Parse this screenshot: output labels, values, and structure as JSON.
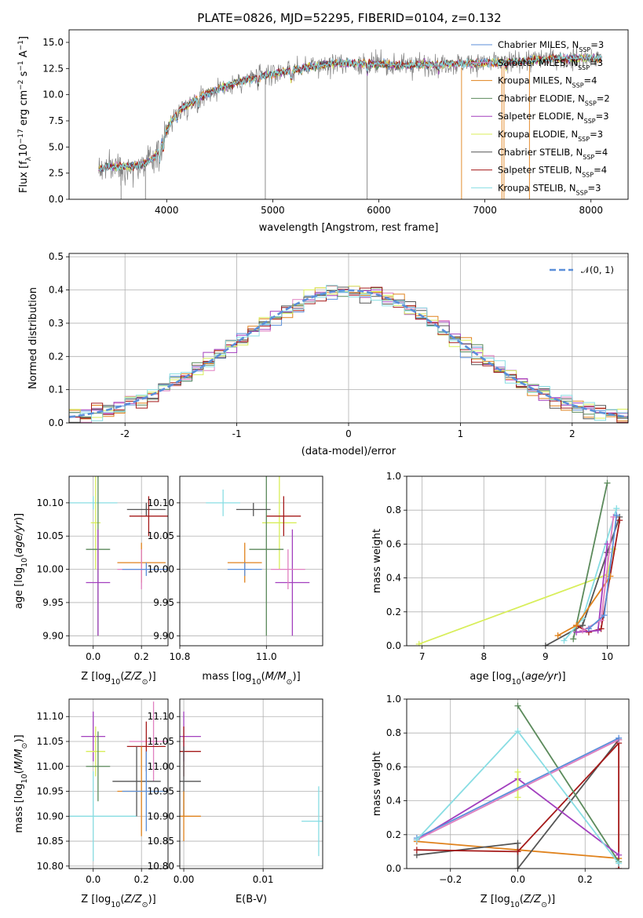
{
  "title": "PLATE=0826, MJD=52295, FIBERID=0104, z=0.132",
  "colors": {
    "chabrier_miles": "#5b8fd9",
    "salpeter_miles": "#e07fc0",
    "kroupa_miles": "#e0821c",
    "chabrier_elodie": "#5b8a5b",
    "salpeter_elodie": "#a23fbe",
    "kroupa_elodie": "#d8ee5a",
    "chabrier_stelib": "#555555",
    "salpeter_stelib": "#a51a1a",
    "kroupa_stelib": "#88dde3",
    "data": "#808080",
    "normal": "#5b8fd9"
  },
  "chart_data": [
    {
      "type": "line",
      "name": "spectrum",
      "xlabel": "wavelength [Angstrom, rest frame]",
      "ylabel": "Flux [f_λ10^-17 erg cm^-2 s^-1 A^-1]",
      "xlim": [
        3080,
        8350
      ],
      "ylim": [
        0,
        16.2
      ],
      "xticks": [
        4000,
        5000,
        6000,
        7000,
        8000
      ],
      "yticks": [
        0.0,
        2.5,
        5.0,
        7.5,
        10.0,
        12.5,
        15.0
      ],
      "continuum": {
        "x": [
          3360,
          3500,
          3600,
          3700,
          3800,
          3900,
          4000,
          4100,
          4200,
          4300,
          4400,
          4500,
          4700,
          5000,
          5300,
          5600,
          5900,
          6200,
          6500,
          6800,
          7000,
          7300,
          7600,
          8000,
          8100
        ],
        "y": [
          2.9,
          3.2,
          3.1,
          3.2,
          3.4,
          4.2,
          6.6,
          8.4,
          9.0,
          9.7,
          10.2,
          10.6,
          11.3,
          12.0,
          12.6,
          13.0,
          13.0,
          12.8,
          12.9,
          13.0,
          13.0,
          13.2,
          13.4,
          13.5,
          13.4
        ]
      },
      "series": [
        {
          "name": "Chabrier MILES, N_SSP=3",
          "color_key": "chabrier_miles"
        },
        {
          "name": "Salpeter MILES, N_SSP=3",
          "color_key": "salpeter_miles"
        },
        {
          "name": "Kroupa MILES, N_SSP=4",
          "color_key": "kroupa_miles"
        },
        {
          "name": "Chabrier ELODIE, N_SSP=2",
          "color_key": "chabrier_elodie"
        },
        {
          "name": "Salpeter ELODIE, N_SSP=3",
          "color_key": "salpeter_elodie"
        },
        {
          "name": "Kroupa ELODIE, N_SSP=3",
          "color_key": "kroupa_elodie"
        },
        {
          "name": "Chabrier STELIB, N_SSP=4",
          "color_key": "chabrier_stelib"
        },
        {
          "name": "Salpeter STELIB, N_SSP=4",
          "color_key": "salpeter_stelib"
        },
        {
          "name": "Kroupa STELIB, N_SSP=3",
          "color_key": "kroupa_stelib"
        }
      ],
      "legend": "right",
      "grid": false
    },
    {
      "type": "line",
      "name": "residual histogram",
      "xlabel": "(data-model)/error",
      "ylabel": "Normed distribution",
      "xlim": [
        -2.5,
        2.5
      ],
      "ylim": [
        0,
        0.51
      ],
      "xticks": [
        -2,
        -1,
        0,
        1,
        2
      ],
      "yticks": [
        0.0,
        0.1,
        0.2,
        0.3,
        0.4,
        0.5
      ],
      "bin_width": 0.1,
      "normal_curve": {
        "name": "N(0,1)",
        "mu": 0,
        "sigma": 1
      },
      "legend": "top-right",
      "grid": true
    },
    {
      "type": "scatter",
      "name": "age vs Z",
      "xlabel": "Z [log10(Z/Z_sun)]",
      "ylabel": "age  [log10(age/yr)]",
      "xlim": [
        -0.1,
        0.31
      ],
      "ylim": [
        9.885,
        10.14
      ],
      "xticks": [
        0.0,
        0.2
      ],
      "yticks": [
        9.9,
        9.95,
        10.0,
        10.05,
        10.1
      ],
      "points": [
        {
          "x": 0.0,
          "y": 10.1,
          "xerr": 0.1,
          "yerr": 0.01,
          "color_key": "kroupa_stelib"
        },
        {
          "x": 0.01,
          "y": 10.07,
          "xerr": 0.02,
          "yerr": 0.07,
          "color_key": "kroupa_elodie"
        },
        {
          "x": 0.02,
          "y": 10.03,
          "xerr": 0.05,
          "yerr": 0.13,
          "color_key": "chabrier_elodie"
        },
        {
          "x": 0.02,
          "y": 9.98,
          "xerr": 0.05,
          "yerr": 0.08,
          "color_key": "salpeter_elodie"
        },
        {
          "x": 0.22,
          "y": 10.09,
          "xerr": 0.08,
          "yerr": 0.01,
          "color_key": "chabrier_stelib"
        },
        {
          "x": 0.23,
          "y": 10.08,
          "xerr": 0.08,
          "yerr": 0.03,
          "color_key": "salpeter_stelib"
        },
        {
          "x": 0.2,
          "y": 10.01,
          "xerr": 0.1,
          "yerr": 0.03,
          "color_key": "kroupa_miles"
        },
        {
          "x": 0.2,
          "y": 10.0,
          "xerr": 0.1,
          "yerr": 0.03,
          "color_key": "salpeter_miles"
        },
        {
          "x": 0.22,
          "y": 10.0,
          "xerr": 0.1,
          "yerr": 0.01,
          "color_key": "chabrier_miles"
        }
      ],
      "grid": true
    },
    {
      "type": "scatter",
      "name": "age vs mass",
      "xlabel": "mass [log10(M/M_sun)]",
      "ylabel": "",
      "xlim": [
        10.8,
        11.13
      ],
      "ylim": [
        9.885,
        10.14
      ],
      "xticks": [
        10.8,
        11.0
      ],
      "yticks": [
        9.9,
        9.95,
        10.0,
        10.05,
        10.1
      ],
      "points": [
        {
          "x": 10.9,
          "y": 10.1,
          "yerr": 0.02,
          "color_key": "kroupa_stelib"
        },
        {
          "x": 11.03,
          "y": 10.07,
          "yerr": 0.07,
          "color_key": "kroupa_elodie"
        },
        {
          "x": 11.0,
          "y": 10.03,
          "yerr": 0.13,
          "color_key": "chabrier_elodie"
        },
        {
          "x": 11.06,
          "y": 9.98,
          "yerr": 0.08,
          "color_key": "salpeter_elodie"
        },
        {
          "x": 10.97,
          "y": 10.09,
          "yerr": 0.01,
          "color_key": "chabrier_stelib"
        },
        {
          "x": 11.04,
          "y": 10.08,
          "yerr": 0.03,
          "color_key": "salpeter_stelib"
        },
        {
          "x": 10.95,
          "y": 10.01,
          "yerr": 0.03,
          "color_key": "kroupa_miles"
        },
        {
          "x": 11.05,
          "y": 10.0,
          "yerr": 0.03,
          "color_key": "salpeter_miles"
        },
        {
          "x": 10.95,
          "y": 10.0,
          "yerr": 0.01,
          "color_key": "chabrier_miles"
        }
      ],
      "grid": true
    },
    {
      "type": "line",
      "name": "mass weight vs age",
      "xlabel": "age  [log10(age/yr)]",
      "ylabel": "mass weight",
      "xlim": [
        6.75,
        10.35
      ],
      "ylim": [
        0,
        1.0
      ],
      "xticks": [
        7,
        8,
        9,
        10
      ],
      "yticks": [
        0.0,
        0.2,
        0.4,
        0.6,
        0.8,
        1.0
      ],
      "series": [
        {
          "color_key": "kroupa_elodie",
          "x": [
            6.95,
            10.0,
            10.1
          ],
          "y": [
            0.01,
            0.42,
            0.57
          ]
        },
        {
          "color_key": "chabrier_stelib",
          "x": [
            9.0,
            9.6,
            10.0,
            10.2
          ],
          "y": [
            0.0,
            0.12,
            0.55,
            0.76
          ]
        },
        {
          "color_key": "salpeter_stelib",
          "x": [
            9.5,
            9.7,
            9.9,
            10.2
          ],
          "y": [
            0.12,
            0.08,
            0.1,
            0.74
          ]
        },
        {
          "color_key": "chabrier_elodie",
          "x": [
            9.45,
            10.0
          ],
          "y": [
            0.04,
            0.96
          ]
        },
        {
          "color_key": "kroupa_stelib",
          "x": [
            9.3,
            9.6,
            10.15
          ],
          "y": [
            0.03,
            0.16,
            0.81
          ]
        },
        {
          "color_key": "kroupa_miles",
          "x": [
            9.2,
            9.5,
            10.05
          ],
          "y": [
            0.06,
            0.12,
            0.41
          ]
        },
        {
          "color_key": "salpeter_elodie",
          "x": [
            9.5,
            9.85,
            10.0
          ],
          "y": [
            0.08,
            0.09,
            0.6
          ]
        },
        {
          "color_key": "salpeter_miles",
          "x": [
            9.6,
            9.9,
            10.1
          ],
          "y": [
            0.09,
            0.15,
            0.76
          ]
        },
        {
          "color_key": "chabrier_miles",
          "x": [
            9.7,
            9.95,
            10.15
          ],
          "y": [
            0.1,
            0.18,
            0.77
          ]
        }
      ],
      "grid": true
    },
    {
      "type": "scatter",
      "name": "mass vs Z",
      "xlabel": "Z [log10(Z/Z_sun)]",
      "ylabel": "mass [log10(M/M_sun)]",
      "xlim": [
        -0.1,
        0.31
      ],
      "ylim": [
        10.795,
        11.135
      ],
      "xticks": [
        0.0,
        0.2
      ],
      "yticks": [
        10.8,
        10.85,
        10.9,
        10.95,
        11.0,
        11.05,
        11.1
      ],
      "points": [
        {
          "x": 0.0,
          "y": 11.06,
          "xerr": 0.05,
          "yerr": 0.05,
          "color_key": "salpeter_elodie"
        },
        {
          "x": 0.01,
          "y": 11.03,
          "xerr": 0.04,
          "yerr": 0.05,
          "color_key": "kroupa_elodie"
        },
        {
          "x": 0.02,
          "y": 11.0,
          "xerr": 0.05,
          "yerr": 0.07,
          "color_key": "chabrier_elodie"
        },
        {
          "x": 0.0,
          "y": 10.9,
          "xerr": 0.18,
          "yerr": 0.09,
          "color_key": "kroupa_stelib"
        },
        {
          "x": 0.25,
          "y": 11.05,
          "xerr": 0.1,
          "yerr": 0.08,
          "color_key": "salpeter_miles"
        },
        {
          "x": 0.22,
          "y": 11.04,
          "xerr": 0.08,
          "yerr": 0.05,
          "color_key": "salpeter_stelib"
        },
        {
          "x": 0.18,
          "y": 10.97,
          "xerr": 0.1,
          "yerr": 0.07,
          "color_key": "chabrier_stelib"
        },
        {
          "x": 0.2,
          "y": 10.95,
          "xerr": 0.1,
          "yerr": 0.09,
          "color_key": "kroupa_miles"
        },
        {
          "x": 0.22,
          "y": 10.95,
          "xerr": 0.1,
          "yerr": 0.08,
          "color_key": "chabrier_miles"
        }
      ],
      "grid": true
    },
    {
      "type": "scatter",
      "name": "mass vs E(B-V)",
      "xlabel": "E(B-V)",
      "ylabel": "",
      "xlim": [
        -0.0005,
        0.0175
      ],
      "ylim": [
        10.795,
        11.135
      ],
      "xticks": [
        0.0,
        0.01
      ],
      "yticks": [
        10.8,
        10.85,
        10.9,
        10.95,
        11.0,
        11.05,
        11.1
      ],
      "points": [
        {
          "x": 0.0,
          "y": 11.06,
          "yerr": 0.05,
          "color_key": "salpeter_elodie"
        },
        {
          "x": 0.0,
          "y": 11.03,
          "yerr": 0.05,
          "color_key": "salpeter_stelib"
        },
        {
          "x": 0.0,
          "y": 10.97,
          "yerr": 0.07,
          "color_key": "chabrier_stelib"
        },
        {
          "x": 0.0,
          "y": 10.9,
          "yerr": 0.05,
          "color_key": "kroupa_miles"
        },
        {
          "x": 0.017,
          "y": 10.89,
          "yerr": 0.07,
          "color_key": "kroupa_stelib"
        }
      ],
      "grid": true
    },
    {
      "type": "line",
      "name": "mass weight vs Z",
      "xlabel": "Z [log10(Z/Z_sun)]",
      "ylabel": "mass weight",
      "xlim": [
        -0.33,
        0.33
      ],
      "ylim": [
        0,
        1.0
      ],
      "xticks": [
        -0.2,
        0.0,
        0.2
      ],
      "yticks": [
        0.0,
        0.2,
        0.4,
        0.6,
        0.8,
        1.0
      ],
      "series": [
        {
          "color_key": "kroupa_miles",
          "x": [
            -0.3,
            0.0,
            0.3
          ],
          "y": [
            0.16,
            0.11,
            0.06
          ]
        },
        {
          "color_key": "chabrier_stelib",
          "x": [
            -0.3,
            0.0,
            0.0,
            0.3
          ],
          "y": [
            0.08,
            0.15,
            0.0,
            0.76
          ]
        },
        {
          "color_key": "salpeter_stelib",
          "x": [
            -0.3,
            0.0,
            0.3,
            0.3
          ],
          "y": [
            0.11,
            0.1,
            0.74,
            0.0
          ]
        },
        {
          "color_key": "chabrier_elodie",
          "x": [
            0.0,
            0.3
          ],
          "y": [
            0.96,
            0.04
          ]
        },
        {
          "color_key": "salpeter_elodie",
          "x": [
            -0.3,
            0.0,
            0.3
          ],
          "y": [
            0.17,
            0.53,
            0.08
          ]
        },
        {
          "color_key": "kroupa_elodie",
          "x": [
            0.0,
            0.0
          ],
          "y": [
            0.57,
            0.42
          ]
        },
        {
          "color_key": "salpeter_miles",
          "x": [
            -0.3,
            0.3
          ],
          "y": [
            0.17,
            0.76
          ]
        },
        {
          "color_key": "chabrier_miles",
          "x": [
            -0.3,
            0.3
          ],
          "y": [
            0.18,
            0.77
          ]
        },
        {
          "color_key": "kroupa_stelib",
          "x": [
            -0.3,
            0.0,
            0.3
          ],
          "y": [
            0.17,
            0.81,
            0.03
          ]
        }
      ],
      "grid": true
    }
  ]
}
